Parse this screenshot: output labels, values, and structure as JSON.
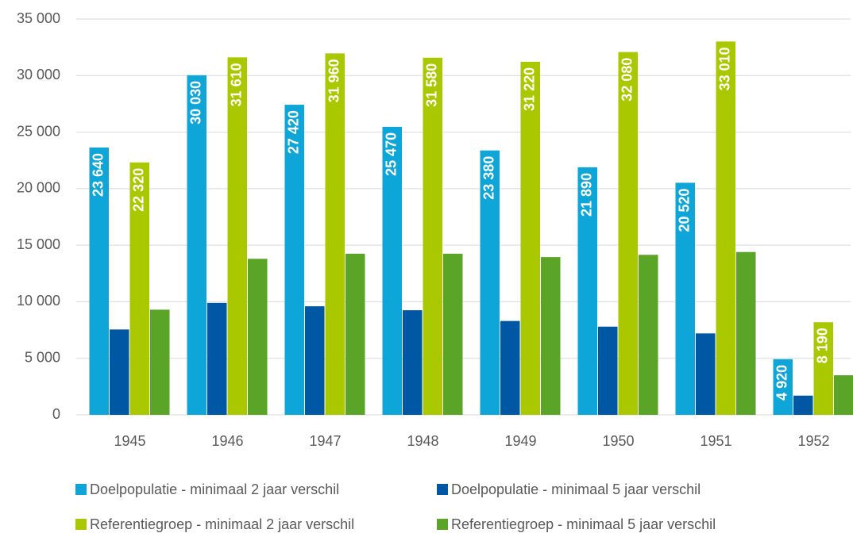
{
  "chart_data": {
    "type": "bar",
    "categories": [
      "1945",
      "1946",
      "1947",
      "1948",
      "1949",
      "1950",
      "1951",
      "1952"
    ],
    "series": [
      {
        "name": "Doelpopulatie - minimaal 2 jaar verschil",
        "color": "#0ea5d8",
        "values": [
          23640,
          30030,
          27420,
          25470,
          23380,
          21890,
          20520,
          4920
        ],
        "value_labels": [
          "23 640",
          "30 030",
          "27 420",
          "25 470",
          "23 380",
          "21 890",
          "20 520",
          "4 920"
        ]
      },
      {
        "name": "Doelpopulatie - minimaal 5 jaar verschil",
        "color": "#0057a3",
        "values": [
          7550,
          9900,
          9600,
          9250,
          8300,
          7800,
          7200,
          1700
        ]
      },
      {
        "name": "Referentiegroep - minimaal 2 jaar verschil",
        "color": "#a9c800",
        "values": [
          22320,
          31610,
          31960,
          31580,
          31220,
          32080,
          33010,
          8190
        ],
        "value_labels": [
          "22 320",
          "31 610",
          "31 960",
          "31 580",
          "31 220",
          "32 080",
          "33 010",
          "8 190"
        ]
      },
      {
        "name": "Referentiegroep - minimaal 5 jaar verschil",
        "color": "#5aa528",
        "values": [
          9300,
          13800,
          14250,
          14250,
          13950,
          14150,
          14400,
          3500
        ]
      }
    ],
    "ylim": [
      0,
      35000
    ],
    "yticks": [
      0,
      {
        "value": 5000,
        "label": "5 000"
      },
      {
        "value": 10000,
        "label": "10 000"
      },
      {
        "value": 15000,
        "label": "15 000"
      },
      {
        "value": 20000,
        "label": "20 000"
      },
      {
        "value": 25000,
        "label": "25 000"
      },
      {
        "value": 30000,
        "label": "30 000"
      },
      {
        "value": 35000,
        "label": "35 000"
      }
    ],
    "grid": true
  }
}
